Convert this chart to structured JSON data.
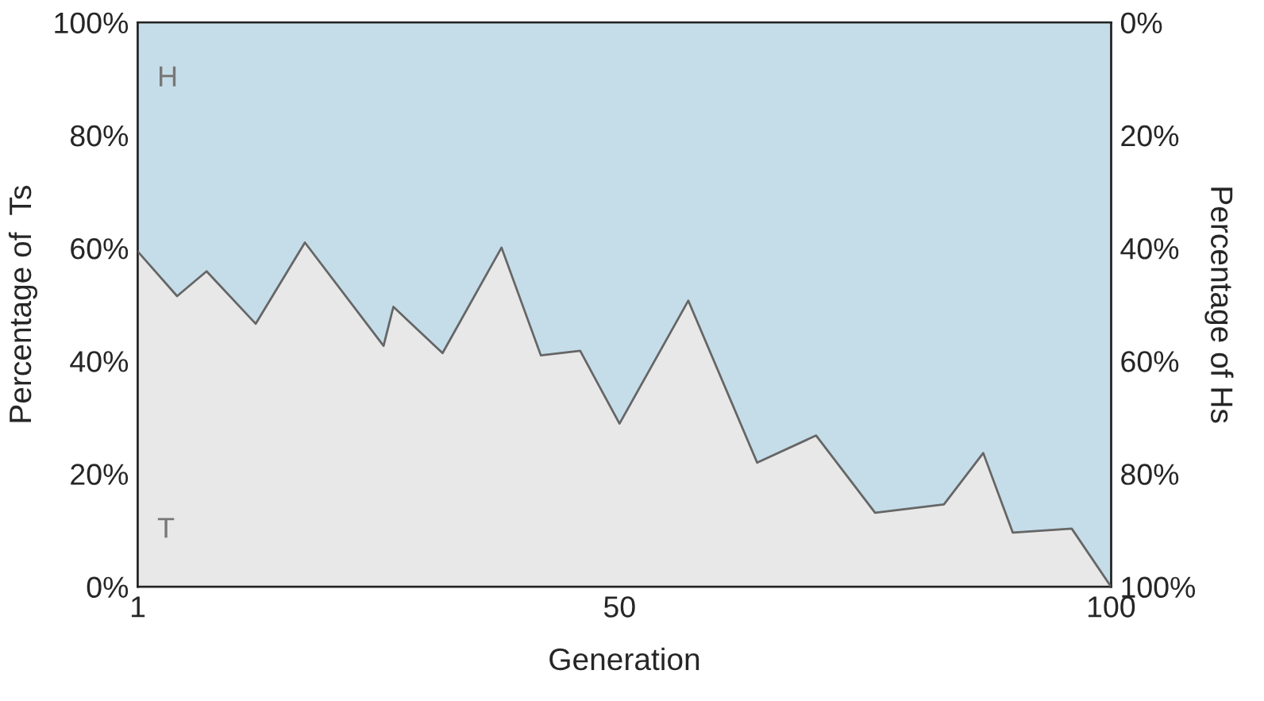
{
  "chart_data": {
    "type": "area",
    "xlabel": "Generation",
    "ylabel": "Percentage of  Ts",
    "y2label": "Percentage of Hs",
    "x": [
      1,
      5,
      8,
      13,
      18,
      26,
      27,
      32,
      38,
      42,
      46,
      50,
      57,
      64,
      70,
      76,
      83,
      87,
      90,
      96,
      100
    ],
    "series": [
      {
        "name": "T",
        "color": "#e8e8e8",
        "values": [
          59.4,
          51.5,
          55.9,
          46.6,
          61.0,
          42.7,
          49.6,
          41.4,
          60.1,
          41.0,
          41.8,
          28.9,
          50.7,
          22.0,
          26.8,
          13.1,
          14.6,
          23.7,
          9.6,
          10.3,
          0
        ]
      }
    ],
    "bands": [
      {
        "axis": "y",
        "from": 0,
        "to": 100,
        "label": "H",
        "color": "#c5dde9"
      }
    ],
    "xlim": [
      1,
      100
    ],
    "xticks": [
      1,
      50,
      100
    ],
    "ylim": [
      0,
      100
    ],
    "yticks": [
      {
        "value": 0,
        "label": "0%"
      },
      {
        "value": 20,
        "label": "20%"
      },
      {
        "value": 40,
        "label": "40%"
      },
      {
        "value": 60,
        "label": "60%"
      },
      {
        "value": 80,
        "label": "80%"
      },
      {
        "value": 100,
        "label": "100%"
      }
    ],
    "y2lim": [
      100,
      0
    ],
    "y2ticks": [
      {
        "value": 0,
        "label": "0%"
      },
      {
        "value": 20,
        "label": "20%"
      },
      {
        "value": 40,
        "label": "40%"
      },
      {
        "value": 60,
        "label": "60%"
      },
      {
        "value": 80,
        "label": "80%"
      },
      {
        "value": 100,
        "label": "100%"
      }
    ],
    "grid": false,
    "legend": false
  }
}
